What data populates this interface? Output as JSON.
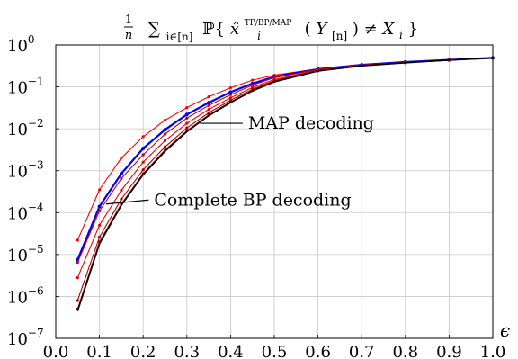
{
  "chart_data": {
    "type": "line",
    "title": "1/n Σ_{i∈[n]} ℙ{x̂_i^{TP/BP/MAP}(Y_[n]) ≠ X_i}",
    "title_parts": {
      "frac_num": "1",
      "frac_den": "n",
      "sum": "∑",
      "sum_sub": "i∈[n]",
      "prob": "ℙ{",
      "xhat": "x̂",
      "i": "i",
      "sup": "TP/BP/MAP",
      "open": "(",
      "Y": "Y",
      "Ysub": "[n]",
      "close": ") ≠ ",
      "X": "X",
      "Xsub": "i",
      "end": "}"
    },
    "xlabel": "ϵ",
    "ylabel": "",
    "xscale": "linear",
    "yscale": "log",
    "xlim": [
      0.0,
      1.0
    ],
    "ylim_exponents": [
      -7,
      0
    ],
    "xticks": [
      "0.0",
      "0.1",
      "0.2",
      "0.3",
      "0.4",
      "0.5",
      "0.6",
      "0.7",
      "0.8",
      "0.9",
      "1.0"
    ],
    "yticks": [
      {
        "base": "10",
        "exp": "0"
      },
      {
        "base": "10",
        "exp": "−1"
      },
      {
        "base": "10",
        "exp": "−2"
      },
      {
        "base": "10",
        "exp": "−3"
      },
      {
        "base": "10",
        "exp": "−4"
      },
      {
        "base": "10",
        "exp": "−5"
      },
      {
        "base": "10",
        "exp": "−6"
      },
      {
        "base": "10",
        "exp": "−7"
      }
    ],
    "grid": true,
    "x": [
      0.05,
      0.1,
      0.15,
      0.2,
      0.25,
      0.3,
      0.35,
      0.4,
      0.45,
      0.5,
      0.6,
      0.7,
      0.8,
      0.9,
      1.0
    ],
    "series": [
      {
        "color": "#ff0000",
        "marker": true,
        "y": [
          2.2e-05,
          0.00035,
          0.002,
          0.0065,
          0.016,
          0.032,
          0.058,
          0.095,
          0.145,
          0.19,
          0.27,
          0.34,
          0.39,
          0.44,
          0.49
        ]
      },
      {
        "color": "#0000ff",
        "marker": true,
        "y": [
          7.5e-06,
          0.00014,
          0.00085,
          0.0034,
          0.0095,
          0.022,
          0.042,
          0.075,
          0.12,
          0.175,
          0.265,
          0.335,
          0.39,
          0.44,
          0.49
        ]
      },
      {
        "color": "#cc0000",
        "marker": true,
        "y": [
          6.5e-06,
          0.00011,
          0.00065,
          0.0024,
          0.0075,
          0.018,
          0.036,
          0.065,
          0.11,
          0.165,
          0.26,
          0.33,
          0.385,
          0.44,
          0.49
        ]
      },
      {
        "color": "#ee0000",
        "marker": true,
        "y": [
          2.8e-06,
          5e-05,
          0.00034,
          0.0016,
          0.0052,
          0.0135,
          0.029,
          0.055,
          0.097,
          0.15,
          0.25,
          0.325,
          0.38,
          0.435,
          0.49
        ]
      },
      {
        "color": "#aa0000",
        "marker": true,
        "y": [
          8e-07,
          2.6e-05,
          0.00021,
          0.00105,
          0.0037,
          0.0105,
          0.024,
          0.048,
          0.088,
          0.14,
          0.245,
          0.32,
          0.38,
          0.435,
          0.49
        ]
      },
      {
        "color": "#990000",
        "marker": true,
        "y": [
          5e-07,
          2e-05,
          0.00016,
          0.00085,
          0.0031,
          0.009,
          0.0215,
          0.044,
          0.082,
          0.135,
          0.24,
          0.32,
          0.375,
          0.435,
          0.49
        ]
      },
      {
        "color": "#000000",
        "marker": false,
        "y": [
          4.5e-07,
          1.8e-05,
          0.00015,
          0.0008,
          0.0029,
          0.0085,
          0.0205,
          0.042,
          0.08,
          0.132,
          0.238,
          0.318,
          0.375,
          0.435,
          0.49
        ]
      }
    ],
    "annotations": [
      {
        "text": "MAP decoding",
        "point": [
          0.33,
          0.0135
        ],
        "text_at": [
          0.44,
          0.0135
        ]
      },
      {
        "text": "Complete BP decoding",
        "point": [
          0.115,
          0.00016
        ],
        "text_at": [
          0.225,
          0.0002
        ]
      }
    ]
  }
}
